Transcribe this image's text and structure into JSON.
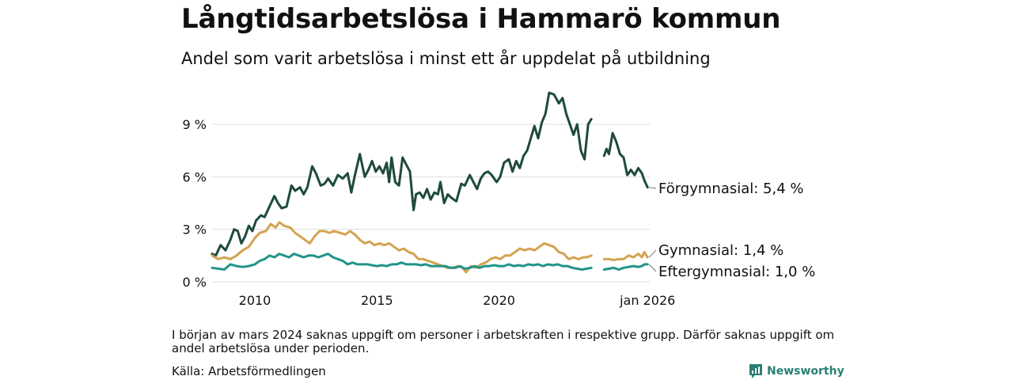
{
  "header": {
    "title": "Långtidsarbetslösa i Hammarö kommun",
    "subtitle": "Andel som varit arbetslösa i minst ett år uppdelat på utbildning"
  },
  "chart_data": {
    "type": "line",
    "x_unit": "year",
    "xlim": [
      2008.25,
      2026.17
    ],
    "ylim": [
      0,
      10.8
    ],
    "y_ticks": [
      {
        "value": 0,
        "label": "0 %"
      },
      {
        "value": 3,
        "label": "3 %"
      },
      {
        "value": 6,
        "label": "6 %"
      },
      {
        "value": 9,
        "label": "9 %"
      }
    ],
    "x_ticks": [
      {
        "value": 2010,
        "label": "2010"
      },
      {
        "value": 2015,
        "label": "2015"
      },
      {
        "value": 2020,
        "label": "2020"
      },
      {
        "value": 2026.08,
        "label": "jan 2026"
      }
    ],
    "gap": [
      2023.75,
      2024.25
    ],
    "series": [
      {
        "name": "Förgymnasial",
        "label": "Förgymnasial: 5,4 %",
        "color": "#1e4a3e",
        "points": [
          [
            2008.25,
            1.6
          ],
          [
            2008.4,
            1.5
          ],
          [
            2008.6,
            2.1
          ],
          [
            2008.8,
            1.8
          ],
          [
            2009.0,
            2.4
          ],
          [
            2009.15,
            3.0
          ],
          [
            2009.3,
            2.9
          ],
          [
            2009.45,
            2.2
          ],
          [
            2009.6,
            2.6
          ],
          [
            2009.75,
            3.2
          ],
          [
            2009.9,
            2.9
          ],
          [
            2010.05,
            3.5
          ],
          [
            2010.25,
            3.8
          ],
          [
            2010.4,
            3.7
          ],
          [
            2010.6,
            4.3
          ],
          [
            2010.8,
            4.9
          ],
          [
            2010.95,
            4.5
          ],
          [
            2011.1,
            4.2
          ],
          [
            2011.3,
            4.3
          ],
          [
            2011.5,
            5.5
          ],
          [
            2011.65,
            5.2
          ],
          [
            2011.85,
            5.4
          ],
          [
            2012.0,
            5.0
          ],
          [
            2012.15,
            5.4
          ],
          [
            2012.35,
            6.6
          ],
          [
            2012.5,
            6.2
          ],
          [
            2012.7,
            5.5
          ],
          [
            2012.85,
            5.6
          ],
          [
            2013.0,
            5.9
          ],
          [
            2013.2,
            5.5
          ],
          [
            2013.4,
            6.1
          ],
          [
            2013.6,
            5.9
          ],
          [
            2013.8,
            6.2
          ],
          [
            2013.95,
            5.1
          ],
          [
            2014.1,
            6.1
          ],
          [
            2014.3,
            7.3
          ],
          [
            2014.5,
            6.0
          ],
          [
            2014.65,
            6.4
          ],
          [
            2014.8,
            6.9
          ],
          [
            2014.95,
            6.3
          ],
          [
            2015.1,
            6.6
          ],
          [
            2015.25,
            6.2
          ],
          [
            2015.4,
            6.8
          ],
          [
            2015.5,
            5.7
          ],
          [
            2015.6,
            7.1
          ],
          [
            2015.75,
            5.7
          ],
          [
            2015.9,
            5.5
          ],
          [
            2016.05,
            7.1
          ],
          [
            2016.2,
            6.7
          ],
          [
            2016.35,
            6.3
          ],
          [
            2016.5,
            4.1
          ],
          [
            2016.6,
            5.0
          ],
          [
            2016.75,
            5.1
          ],
          [
            2016.9,
            4.8
          ],
          [
            2017.05,
            5.3
          ],
          [
            2017.2,
            4.7
          ],
          [
            2017.35,
            5.1
          ],
          [
            2017.5,
            5.0
          ],
          [
            2017.6,
            5.7
          ],
          [
            2017.75,
            4.5
          ],
          [
            2017.9,
            5.0
          ],
          [
            2018.05,
            4.8
          ],
          [
            2018.25,
            4.6
          ],
          [
            2018.45,
            5.6
          ],
          [
            2018.6,
            5.5
          ],
          [
            2018.8,
            6.1
          ],
          [
            2018.95,
            5.7
          ],
          [
            2019.1,
            5.3
          ],
          [
            2019.25,
            5.9
          ],
          [
            2019.4,
            6.2
          ],
          [
            2019.55,
            6.3
          ],
          [
            2019.7,
            6.1
          ],
          [
            2019.9,
            5.7
          ],
          [
            2020.05,
            6.0
          ],
          [
            2020.2,
            6.8
          ],
          [
            2020.4,
            7.0
          ],
          [
            2020.55,
            6.3
          ],
          [
            2020.7,
            6.9
          ],
          [
            2020.85,
            6.5
          ],
          [
            2021.0,
            7.2
          ],
          [
            2021.15,
            7.5
          ],
          [
            2021.3,
            8.2
          ],
          [
            2021.45,
            8.9
          ],
          [
            2021.6,
            8.2
          ],
          [
            2021.75,
            9.1
          ],
          [
            2021.9,
            9.6
          ],
          [
            2022.05,
            10.8
          ],
          [
            2022.25,
            10.7
          ],
          [
            2022.45,
            10.2
          ],
          [
            2022.6,
            10.5
          ],
          [
            2022.75,
            9.6
          ],
          [
            2022.9,
            9.0
          ],
          [
            2023.05,
            8.4
          ],
          [
            2023.2,
            9.0
          ],
          [
            2023.35,
            7.5
          ],
          [
            2023.5,
            7.0
          ],
          [
            2023.65,
            9.0
          ],
          [
            2023.78,
            9.3
          ],
          null,
          [
            2024.3,
            7.2
          ],
          [
            2024.4,
            7.6
          ],
          [
            2024.5,
            7.3
          ],
          [
            2024.65,
            8.5
          ],
          [
            2024.8,
            8.0
          ],
          [
            2024.95,
            7.3
          ],
          [
            2025.1,
            7.1
          ],
          [
            2025.25,
            6.1
          ],
          [
            2025.4,
            6.4
          ],
          [
            2025.55,
            6.1
          ],
          [
            2025.7,
            6.5
          ],
          [
            2025.85,
            6.2
          ],
          [
            2025.95,
            5.8
          ],
          [
            2026.08,
            5.4
          ]
        ]
      },
      {
        "name": "Gymnasial",
        "label": "Gymnasial: 1,4 %",
        "color": "#d4a351",
        "points": [
          [
            2008.25,
            1.5
          ],
          [
            2008.5,
            1.3
          ],
          [
            2008.75,
            1.4
          ],
          [
            2009.0,
            1.3
          ],
          [
            2009.25,
            1.5
          ],
          [
            2009.5,
            1.8
          ],
          [
            2009.75,
            2.0
          ],
          [
            2010.0,
            2.5
          ],
          [
            2010.2,
            2.8
          ],
          [
            2010.45,
            2.9
          ],
          [
            2010.65,
            3.3
          ],
          [
            2010.85,
            3.1
          ],
          [
            2011.0,
            3.4
          ],
          [
            2011.2,
            3.2
          ],
          [
            2011.45,
            3.1
          ],
          [
            2011.65,
            2.8
          ],
          [
            2011.85,
            2.6
          ],
          [
            2012.05,
            2.4
          ],
          [
            2012.25,
            2.2
          ],
          [
            2012.45,
            2.6
          ],
          [
            2012.65,
            2.9
          ],
          [
            2012.85,
            2.9
          ],
          [
            2013.05,
            2.8
          ],
          [
            2013.25,
            2.9
          ],
          [
            2013.5,
            2.8
          ],
          [
            2013.7,
            2.7
          ],
          [
            2013.9,
            2.9
          ],
          [
            2014.1,
            2.7
          ],
          [
            2014.3,
            2.4
          ],
          [
            2014.5,
            2.2
          ],
          [
            2014.7,
            2.3
          ],
          [
            2014.9,
            2.1
          ],
          [
            2015.1,
            2.2
          ],
          [
            2015.3,
            2.1
          ],
          [
            2015.5,
            2.2
          ],
          [
            2015.7,
            2.0
          ],
          [
            2015.9,
            1.8
          ],
          [
            2016.1,
            1.9
          ],
          [
            2016.3,
            1.7
          ],
          [
            2016.5,
            1.6
          ],
          [
            2016.7,
            1.3
          ],
          [
            2016.9,
            1.3
          ],
          [
            2017.1,
            1.2
          ],
          [
            2017.3,
            1.1
          ],
          [
            2017.5,
            1.0
          ],
          [
            2017.7,
            0.9
          ],
          [
            2017.9,
            0.8
          ],
          [
            2018.1,
            0.8
          ],
          [
            2018.3,
            0.9
          ],
          [
            2018.5,
            0.8
          ],
          [
            2018.65,
            0.55
          ],
          [
            2018.85,
            0.9
          ],
          [
            2019.05,
            0.8
          ],
          [
            2019.25,
            1.0
          ],
          [
            2019.45,
            1.1
          ],
          [
            2019.65,
            1.3
          ],
          [
            2019.85,
            1.4
          ],
          [
            2020.05,
            1.3
          ],
          [
            2020.25,
            1.5
          ],
          [
            2020.45,
            1.5
          ],
          [
            2020.65,
            1.7
          ],
          [
            2020.85,
            1.9
          ],
          [
            2021.05,
            1.8
          ],
          [
            2021.25,
            1.9
          ],
          [
            2021.45,
            1.8
          ],
          [
            2021.65,
            2.0
          ],
          [
            2021.85,
            2.2
          ],
          [
            2022.05,
            2.1
          ],
          [
            2022.25,
            2.0
          ],
          [
            2022.45,
            1.7
          ],
          [
            2022.65,
            1.6
          ],
          [
            2022.85,
            1.3
          ],
          [
            2023.05,
            1.4
          ],
          [
            2023.25,
            1.3
          ],
          [
            2023.45,
            1.4
          ],
          [
            2023.6,
            1.4
          ],
          [
            2023.78,
            1.5
          ],
          null,
          [
            2024.3,
            1.3
          ],
          [
            2024.5,
            1.3
          ],
          [
            2024.7,
            1.25
          ],
          [
            2024.9,
            1.3
          ],
          [
            2025.1,
            1.3
          ],
          [
            2025.3,
            1.5
          ],
          [
            2025.5,
            1.4
          ],
          [
            2025.7,
            1.6
          ],
          [
            2025.85,
            1.4
          ],
          [
            2025.95,
            1.7
          ],
          [
            2026.08,
            1.4
          ]
        ]
      },
      {
        "name": "Eftergymnasial",
        "label": "Eftergymnasial: 1,0 %",
        "color": "#21948a",
        "points": [
          [
            2008.25,
            0.8
          ],
          [
            2008.5,
            0.75
          ],
          [
            2008.75,
            0.7
          ],
          [
            2009.0,
            1.0
          ],
          [
            2009.25,
            0.9
          ],
          [
            2009.5,
            0.85
          ],
          [
            2009.75,
            0.9
          ],
          [
            2010.0,
            1.0
          ],
          [
            2010.2,
            1.2
          ],
          [
            2010.4,
            1.3
          ],
          [
            2010.6,
            1.5
          ],
          [
            2010.8,
            1.4
          ],
          [
            2011.0,
            1.6
          ],
          [
            2011.2,
            1.5
          ],
          [
            2011.4,
            1.4
          ],
          [
            2011.6,
            1.6
          ],
          [
            2011.8,
            1.5
          ],
          [
            2012.0,
            1.4
          ],
          [
            2012.2,
            1.5
          ],
          [
            2012.4,
            1.5
          ],
          [
            2012.6,
            1.4
          ],
          [
            2012.8,
            1.5
          ],
          [
            2013.0,
            1.6
          ],
          [
            2013.2,
            1.4
          ],
          [
            2013.4,
            1.3
          ],
          [
            2013.6,
            1.2
          ],
          [
            2013.8,
            1.0
          ],
          [
            2014.0,
            1.1
          ],
          [
            2014.2,
            1.0
          ],
          [
            2014.4,
            1.0
          ],
          [
            2014.6,
            1.0
          ],
          [
            2014.8,
            0.95
          ],
          [
            2015.0,
            0.9
          ],
          [
            2015.2,
            0.95
          ],
          [
            2015.4,
            0.9
          ],
          [
            2015.6,
            1.0
          ],
          [
            2015.8,
            1.0
          ],
          [
            2016.0,
            1.1
          ],
          [
            2016.2,
            1.0
          ],
          [
            2016.4,
            1.0
          ],
          [
            2016.6,
            1.0
          ],
          [
            2016.8,
            0.95
          ],
          [
            2017.0,
            1.0
          ],
          [
            2017.2,
            0.9
          ],
          [
            2017.4,
            0.9
          ],
          [
            2017.6,
            0.9
          ],
          [
            2017.8,
            0.9
          ],
          [
            2018.0,
            0.8
          ],
          [
            2018.2,
            0.8
          ],
          [
            2018.4,
            0.9
          ],
          [
            2018.6,
            0.75
          ],
          [
            2018.8,
            0.8
          ],
          [
            2019.0,
            0.9
          ],
          [
            2019.2,
            0.8
          ],
          [
            2019.4,
            0.9
          ],
          [
            2019.6,
            0.9
          ],
          [
            2019.8,
            0.95
          ],
          [
            2020.0,
            0.9
          ],
          [
            2020.2,
            0.9
          ],
          [
            2020.4,
            1.0
          ],
          [
            2020.6,
            0.9
          ],
          [
            2020.8,
            0.95
          ],
          [
            2021.0,
            0.9
          ],
          [
            2021.2,
            1.0
          ],
          [
            2021.4,
            0.95
          ],
          [
            2021.6,
            1.0
          ],
          [
            2021.8,
            0.9
          ],
          [
            2022.0,
            1.0
          ],
          [
            2022.2,
            0.95
          ],
          [
            2022.4,
            1.0
          ],
          [
            2022.6,
            0.9
          ],
          [
            2022.8,
            0.9
          ],
          [
            2023.0,
            0.8
          ],
          [
            2023.2,
            0.75
          ],
          [
            2023.4,
            0.7
          ],
          [
            2023.6,
            0.75
          ],
          [
            2023.78,
            0.8
          ],
          null,
          [
            2024.3,
            0.7
          ],
          [
            2024.5,
            0.75
          ],
          [
            2024.7,
            0.8
          ],
          [
            2024.9,
            0.7
          ],
          [
            2025.1,
            0.8
          ],
          [
            2025.3,
            0.85
          ],
          [
            2025.5,
            0.9
          ],
          [
            2025.7,
            0.85
          ],
          [
            2025.85,
            0.9
          ],
          [
            2025.95,
            1.0
          ],
          [
            2026.08,
            1.0
          ]
        ]
      }
    ]
  },
  "footer": {
    "note": "I början av mars 2024 saknas uppgift om personer i arbetskraften i respektive grupp. Därför saknas uppgift om andel arbetslösa under perioden.",
    "source": "Källa: Arbetsförmedlingen",
    "brand": "Newsworthy"
  },
  "colors": {
    "grid": "#dddddd",
    "text": "#111111",
    "brand": "#2a7f74"
  }
}
